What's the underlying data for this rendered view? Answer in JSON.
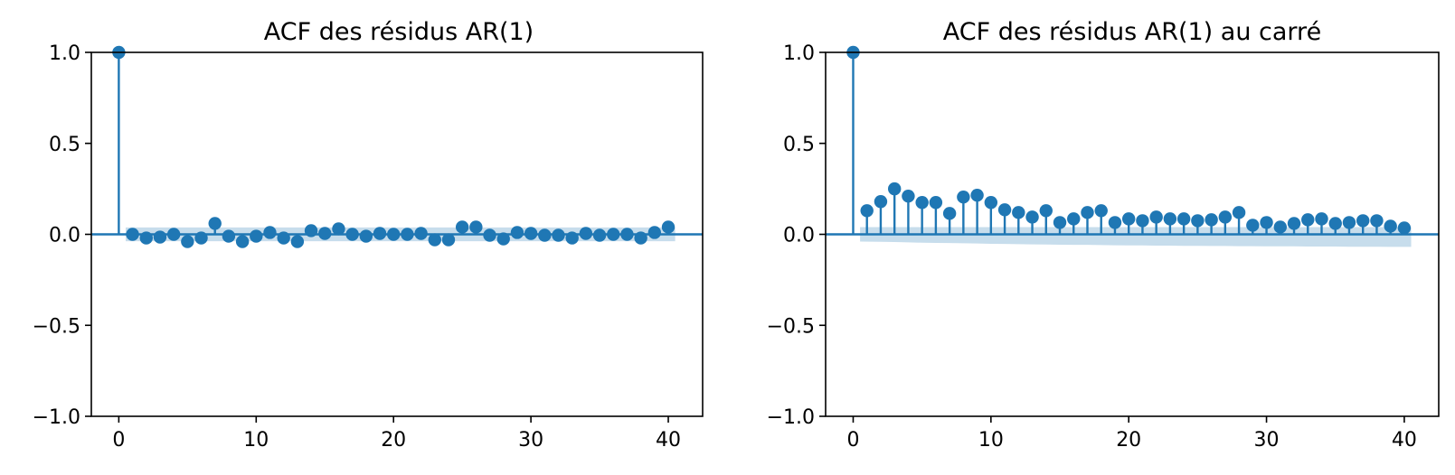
{
  "chart_data": [
    {
      "type": "stem",
      "title": "ACF des résidus AR(1)",
      "xlabel": "",
      "ylabel": "",
      "xlim": [
        -2,
        42.5
      ],
      "ylim": [
        -1.0,
        1.0
      ],
      "xticks": [
        0,
        10,
        20,
        30,
        40
      ],
      "xtick_labels": [
        "0",
        "10",
        "20",
        "30",
        "40"
      ],
      "yticks": [
        1.0,
        0.5,
        0.0,
        -0.5,
        -1.0
      ],
      "ytick_labels": [
        "1.0",
        "0.5",
        "0.0",
        "−0.5",
        "−1.0"
      ],
      "grid": false,
      "color": "#1f77b4",
      "lags": [
        0,
        1,
        2,
        3,
        4,
        5,
        6,
        7,
        8,
        9,
        10,
        11,
        12,
        13,
        14,
        15,
        16,
        17,
        18,
        19,
        20,
        21,
        22,
        23,
        24,
        25,
        26,
        27,
        28,
        29,
        30,
        31,
        32,
        33,
        34,
        35,
        36,
        37,
        38,
        39,
        40
      ],
      "values": [
        1.0,
        0.0,
        -0.02,
        -0.015,
        0.0,
        -0.04,
        -0.02,
        0.06,
        -0.01,
        -0.04,
        -0.01,
        0.01,
        -0.02,
        -0.04,
        0.02,
        0.005,
        0.03,
        0.0,
        -0.01,
        0.005,
        0.0,
        0.0,
        0.005,
        -0.03,
        -0.03,
        0.04,
        0.04,
        -0.005,
        -0.025,
        0.01,
        0.005,
        -0.005,
        -0.005,
        -0.02,
        0.005,
        -0.005,
        0.0,
        0.0,
        -0.02,
        0.01,
        0.04
      ],
      "confint_upper": [
        0.0,
        0.038,
        0.038,
        0.038,
        0.038,
        0.038,
        0.038,
        0.038,
        0.038,
        0.038,
        0.038,
        0.038,
        0.038,
        0.038,
        0.038,
        0.038,
        0.038,
        0.038,
        0.038,
        0.038,
        0.038,
        0.038,
        0.038,
        0.038,
        0.038,
        0.038,
        0.038,
        0.038,
        0.038,
        0.038,
        0.038,
        0.038,
        0.038,
        0.038,
        0.038,
        0.038,
        0.038,
        0.038,
        0.038,
        0.038,
        0.038
      ]
    },
    {
      "type": "stem",
      "title": "ACF des résidus AR(1) au carré",
      "xlabel": "",
      "ylabel": "",
      "xlim": [
        -2,
        42.5
      ],
      "ylim": [
        -1.0,
        1.0
      ],
      "xticks": [
        0,
        10,
        20,
        30,
        40
      ],
      "xtick_labels": [
        "0",
        "10",
        "20",
        "30",
        "40"
      ],
      "yticks": [
        1.0,
        0.5,
        0.0,
        -0.5,
        -1.0
      ],
      "ytick_labels": [
        "1.0",
        "0.5",
        "0.0",
        "−0.5",
        "−1.0"
      ],
      "grid": false,
      "color": "#1f77b4",
      "lags": [
        0,
        1,
        2,
        3,
        4,
        5,
        6,
        7,
        8,
        9,
        10,
        11,
        12,
        13,
        14,
        15,
        16,
        17,
        18,
        19,
        20,
        21,
        22,
        23,
        24,
        25,
        26,
        27,
        28,
        29,
        30,
        31,
        32,
        33,
        34,
        35,
        36,
        37,
        38,
        39,
        40
      ],
      "values": [
        1.0,
        0.13,
        0.18,
        0.25,
        0.21,
        0.175,
        0.175,
        0.115,
        0.205,
        0.215,
        0.175,
        0.135,
        0.12,
        0.095,
        0.13,
        0.065,
        0.085,
        0.12,
        0.13,
        0.065,
        0.085,
        0.075,
        0.095,
        0.085,
        0.085,
        0.075,
        0.08,
        0.095,
        0.12,
        0.05,
        0.065,
        0.04,
        0.06,
        0.08,
        0.085,
        0.06,
        0.065,
        0.075,
        0.075,
        0.045,
        0.035
      ],
      "confint_upper": [
        0.0,
        0.04,
        0.04,
        0.04,
        0.04,
        0.04,
        0.04,
        0.04,
        0.04,
        0.04,
        0.04,
        0.04,
        0.04,
        0.04,
        0.04,
        0.04,
        0.04,
        0.04,
        0.04,
        0.04,
        0.04,
        0.04,
        0.04,
        0.04,
        0.04,
        0.04,
        0.04,
        0.04,
        0.04,
        0.04,
        0.04,
        0.04,
        0.04,
        0.04,
        0.04,
        0.04,
        0.04,
        0.04,
        0.04,
        0.04,
        0.04
      ],
      "confint_lower_spread": [
        0.0,
        0.04,
        0.041,
        0.042,
        0.044,
        0.046,
        0.047,
        0.048,
        0.049,
        0.05,
        0.052,
        0.053,
        0.054,
        0.055,
        0.056,
        0.057,
        0.058,
        0.058,
        0.059,
        0.06,
        0.061,
        0.061,
        0.062,
        0.062,
        0.063,
        0.063,
        0.064,
        0.064,
        0.065,
        0.065,
        0.066,
        0.066,
        0.066,
        0.067,
        0.067,
        0.067,
        0.068,
        0.068,
        0.068,
        0.069,
        0.069
      ]
    }
  ]
}
